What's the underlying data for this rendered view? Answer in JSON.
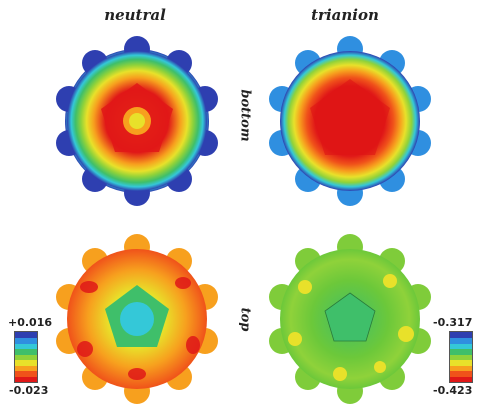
{
  "columns": {
    "left": "neutral",
    "right": "trianion"
  },
  "rows": {
    "top_row": "bottom",
    "bottom_row": "top"
  },
  "scale_left": {
    "max": "+0.016",
    "min": "-0.023"
  },
  "scale_right": {
    "max": "-0.317",
    "min": "-0.423"
  },
  "colormap": [
    "#2e3fb0",
    "#2f8fe0",
    "#34c8d8",
    "#3fbf6a",
    "#8fd23a",
    "#e8e12a",
    "#f7a01e",
    "#f0521a",
    "#e01818"
  ]
}
